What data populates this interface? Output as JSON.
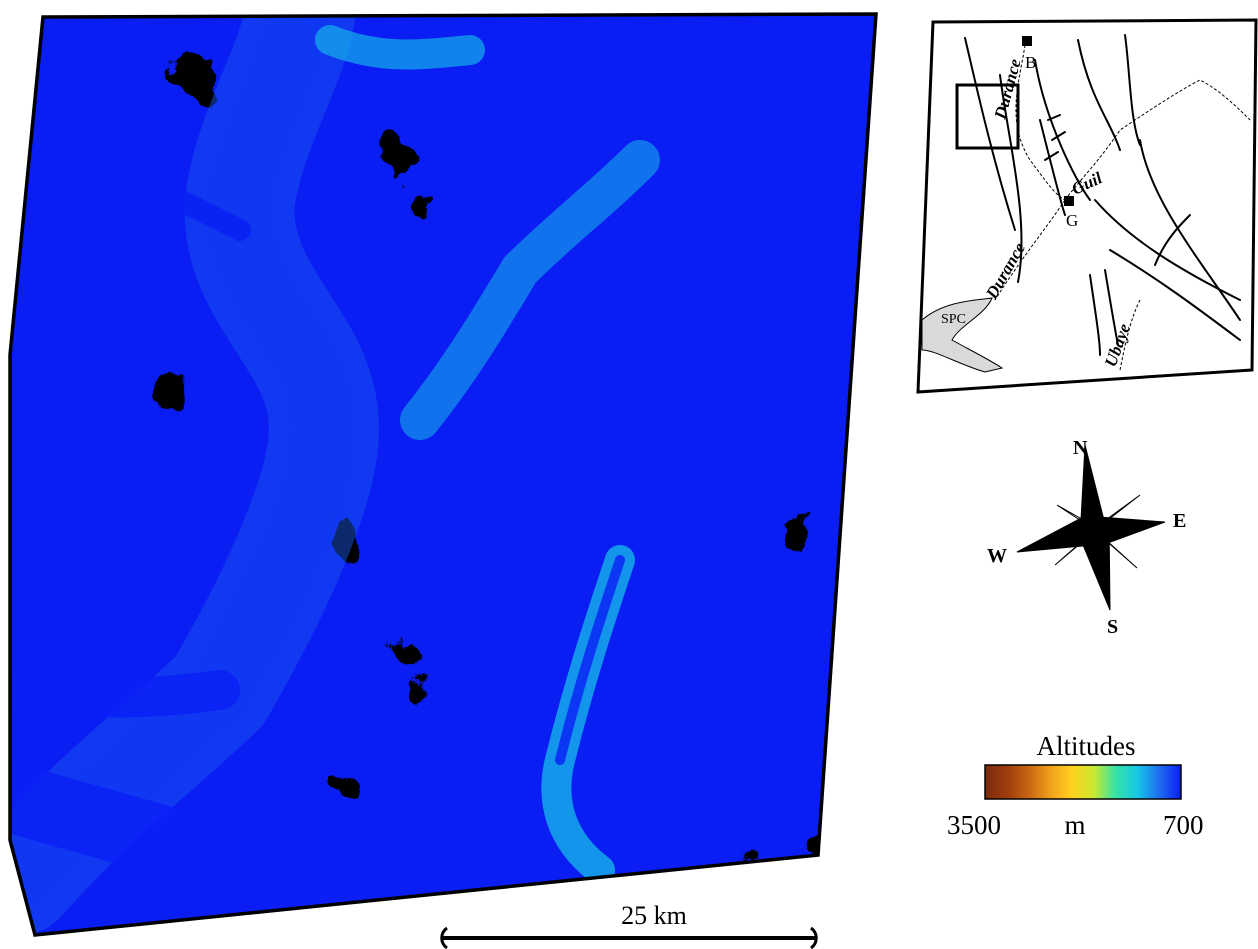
{
  "inset": {
    "labels": {
      "B": "B",
      "G": "G",
      "spc": "SPC",
      "durance_north": "Durance",
      "durance_south": "Durance",
      "guil": "Guil",
      "ubaye": "Ubaye"
    }
  },
  "compass": {
    "n": "N",
    "e": "E",
    "s": "S",
    "w": "W"
  },
  "legend": {
    "title": "Altitudes",
    "max_label": "3500",
    "unit_label": "m",
    "min_label": "700",
    "colors": [
      "#7a2a0c",
      "#9e3c0c",
      "#c86512",
      "#f0a01a",
      "#ffd21f",
      "#c8e830",
      "#35e3a6",
      "#16c7e6",
      "#1f6ef0",
      "#0a1ef5"
    ]
  },
  "scale_bar": {
    "label": "25 km"
  },
  "map": {
    "colors": {
      "high": "#7a2a0c",
      "upper": "#b04e10",
      "mid": "#f0a01a",
      "yellow": "#ffd21f",
      "green": "#35e3a6",
      "cyan": "#16c7e6",
      "low": "#0a1ef5"
    }
  }
}
